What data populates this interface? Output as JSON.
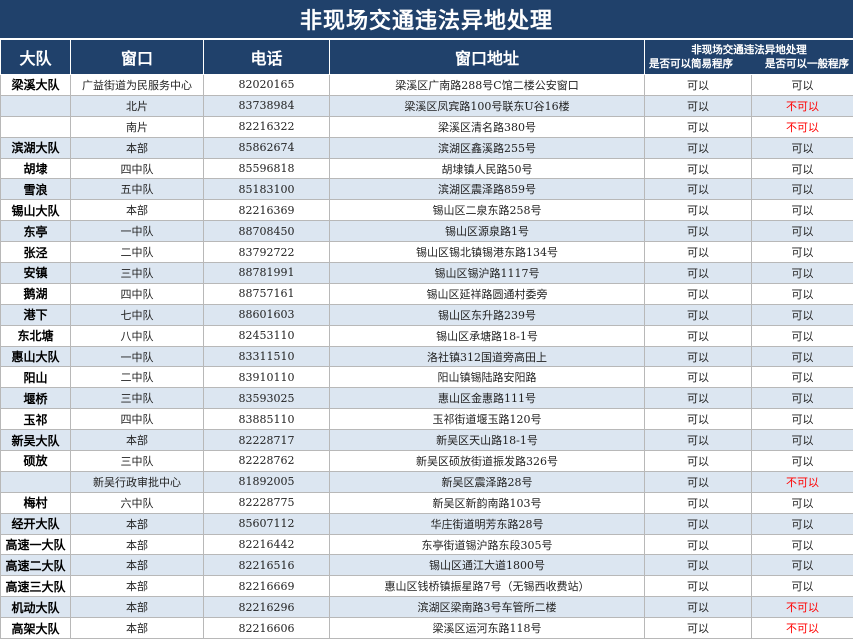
{
  "title": "非现场交通违法异地处理",
  "headers": {
    "dadui": "大队",
    "window": "窗口",
    "phone": "电话",
    "address": "窗口地址",
    "remote_title": "非现场交通违法异地处理",
    "simple": "是否可以简易程序",
    "general": "是否可以一般程序"
  },
  "colors": {
    "header_bg": "#20416b",
    "stripe": "#dce6f1",
    "no_color": "#ff0000"
  },
  "rows": [
    {
      "dadui": "梁溪大队",
      "window": "广益街道为民服务中心",
      "phone": "82020165",
      "address": "梁溪区广南路288号C馆二楼公安窗口",
      "simple": "可以",
      "general": "可以"
    },
    {
      "dadui": "",
      "window": "北片",
      "phone": "83738984",
      "address": "梁溪区凤宾路100号联东U谷16楼",
      "simple": "可以",
      "general": "不可以"
    },
    {
      "dadui": "",
      "window": "南片",
      "phone": "82216322",
      "address": "梁溪区清名路380号",
      "simple": "可以",
      "general": "不可以"
    },
    {
      "dadui": "滨湖大队",
      "window": "本部",
      "phone": "85862674",
      "address": "滨湖区鑫溪路255号",
      "simple": "可以",
      "general": "可以"
    },
    {
      "dadui": "胡埭",
      "window": "四中队",
      "phone": "85596818",
      "address": "胡埭镇人民路50号",
      "simple": "可以",
      "general": "可以"
    },
    {
      "dadui": "雪浪",
      "window": "五中队",
      "phone": "85183100",
      "address": "滨湖区震泽路859号",
      "simple": "可以",
      "general": "可以"
    },
    {
      "dadui": "锡山大队",
      "window": "本部",
      "phone": "82216369",
      "address": "锡山区二泉东路258号",
      "simple": "可以",
      "general": "可以"
    },
    {
      "dadui": "东亭",
      "window": "一中队",
      "phone": "88708450",
      "address": "锡山区源泉路1号",
      "simple": "可以",
      "general": "可以"
    },
    {
      "dadui": "张泾",
      "window": "二中队",
      "phone": "83792722",
      "address": "锡山区锡北镇锡港东路134号",
      "simple": "可以",
      "general": "可以"
    },
    {
      "dadui": "安镇",
      "window": "三中队",
      "phone": "88781991",
      "address": "锡山区锡沪路1117号",
      "simple": "可以",
      "general": "可以"
    },
    {
      "dadui": "鹅湖",
      "window": "四中队",
      "phone": "88757161",
      "address": "锡山区延祥路圆通村委旁",
      "simple": "可以",
      "general": "可以"
    },
    {
      "dadui": "港下",
      "window": "七中队",
      "phone": "88601603",
      "address": "锡山区东升路239号",
      "simple": "可以",
      "general": "可以"
    },
    {
      "dadui": "东北塘",
      "window": "八中队",
      "phone": "82453110",
      "address": "锡山区承塘路18-1号",
      "simple": "可以",
      "general": "可以"
    },
    {
      "dadui": "惠山大队",
      "window": "一中队",
      "phone": "83311510",
      "address": "洛社镇312国道旁高田上",
      "simple": "可以",
      "general": "可以"
    },
    {
      "dadui": "阳山",
      "window": "二中队",
      "phone": "83910110",
      "address": "阳山镇锡陆路安阳路",
      "simple": "可以",
      "general": "可以"
    },
    {
      "dadui": "堰桥",
      "window": "三中队",
      "phone": "83593025",
      "address": "惠山区金惠路111号",
      "simple": "可以",
      "general": "可以"
    },
    {
      "dadui": "玉祁",
      "window": "四中队",
      "phone": "83885110",
      "address": "玉祁街道堰玉路120号",
      "simple": "可以",
      "general": "可以"
    },
    {
      "dadui": "新吴大队",
      "window": "本部",
      "phone": "82228717",
      "address": "新吴区天山路18-1号",
      "simple": "可以",
      "general": "可以"
    },
    {
      "dadui": "硕放",
      "window": "三中队",
      "phone": "82228762",
      "address": "新吴区硕放街道振发路326号",
      "simple": "可以",
      "general": "可以"
    },
    {
      "dadui": "",
      "window": "新吴行政审批中心",
      "phone": "81892005",
      "address": "新吴区震泽路28号",
      "simple": "可以",
      "general": "不可以"
    },
    {
      "dadui": "梅村",
      "window": "六中队",
      "phone": "82228775",
      "address": "新吴区新韵南路103号",
      "simple": "可以",
      "general": "可以"
    },
    {
      "dadui": "经开大队",
      "window": "本部",
      "phone": "85607112",
      "address": "华庄街道明芳东路28号",
      "simple": "可以",
      "general": "可以"
    },
    {
      "dadui": "高速一大队",
      "window": "本部",
      "phone": "82216442",
      "address": "东亭街道锡沪路东段305号",
      "simple": "可以",
      "general": "可以"
    },
    {
      "dadui": "高速二大队",
      "window": "本部",
      "phone": "82216516",
      "address": "锡山区通江大道1800号",
      "simple": "可以",
      "general": "可以"
    },
    {
      "dadui": "高速三大队",
      "window": "本部",
      "phone": "82216669",
      "address": "惠山区钱桥镇振星路7号（无锡西收费站）",
      "simple": "可以",
      "general": "可以"
    },
    {
      "dadui": "机动大队",
      "window": "本部",
      "phone": "82216296",
      "address": "滨湖区梁南路3号车管所二楼",
      "simple": "可以",
      "general": "不可以"
    },
    {
      "dadui": "高架大队",
      "window": "本部",
      "phone": "82216606",
      "address": "梁溪区运河东路118号",
      "simple": "可以",
      "general": "不可以"
    }
  ]
}
